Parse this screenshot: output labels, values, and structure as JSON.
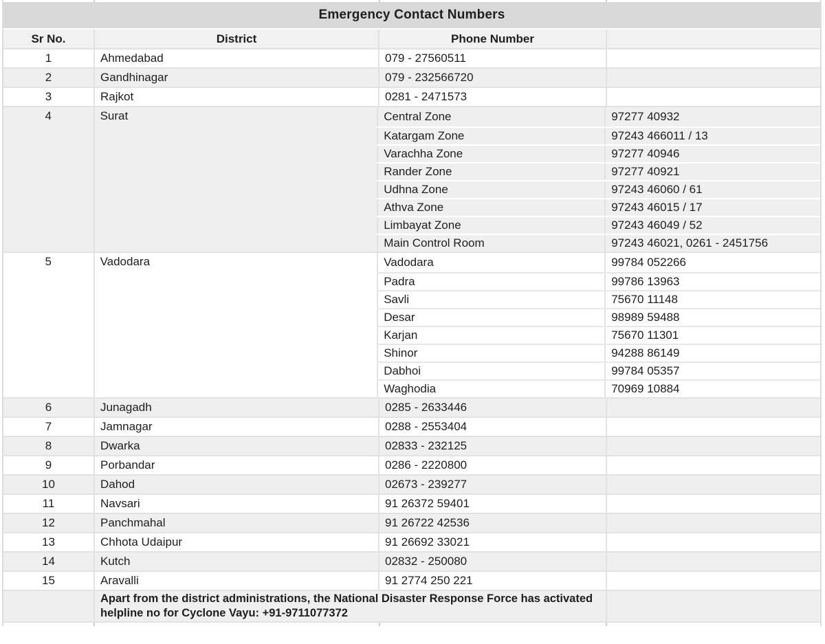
{
  "title": "Emergency Contact Numbers",
  "columns": {
    "sr": "Sr No.",
    "district": "District",
    "phone": "Phone Number",
    "extra": ""
  },
  "rows": [
    {
      "sr": "1",
      "district": "Ahmedabad",
      "phone": "079 - 27560511"
    },
    {
      "sr": "2",
      "district": "Gandhinagar",
      "phone": "079 - 232566720"
    },
    {
      "sr": "3",
      "district": "Rajkot",
      "phone": "0281 - 2471573"
    },
    {
      "sr": "4",
      "district": "Surat",
      "subrows": [
        {
          "name": "Central Zone",
          "phone": "97277 40932"
        },
        {
          "name": "Katargam Zone",
          "phone": "97243 466011 / 13"
        },
        {
          "name": "Varachha Zone",
          "phone": "97277 40946"
        },
        {
          "name": "Rander Zone",
          "phone": "97277 40921"
        },
        {
          "name": "Udhna Zone",
          "phone": "97243 46060 / 61"
        },
        {
          "name": "Athva Zone",
          "phone": "97243 46015 / 17"
        },
        {
          "name": "Limbayat Zone",
          "phone": "97243 46049 / 52"
        },
        {
          "name": "Main Control Room",
          "phone": "97243 46021, 0261 - 2451756"
        }
      ]
    },
    {
      "sr": "5",
      "district": "Vadodara",
      "subrows": [
        {
          "name": "Vadodara",
          "phone": "99784 052266"
        },
        {
          "name": "Padra",
          "phone": "99786 13963"
        },
        {
          "name": "Savli",
          "phone": "75670 11148"
        },
        {
          "name": "Desar",
          "phone": "98989 59488"
        },
        {
          "name": "Karjan",
          "phone": "75670 11301"
        },
        {
          "name": "Shinor",
          "phone": "94288 86149"
        },
        {
          "name": "Dabhoi",
          "phone": "99784 05357"
        },
        {
          "name": "Waghodia",
          "phone": "70969 10884"
        }
      ]
    },
    {
      "sr": "6",
      "district": "Junagadh",
      "phone": "0285 - 2633446"
    },
    {
      "sr": "7",
      "district": "Jamnagar",
      "phone": "0288 - 2553404"
    },
    {
      "sr": "8",
      "district": "Dwarka",
      "phone": "02833 - 232125"
    },
    {
      "sr": "9",
      "district": "Porbandar",
      "phone": "0286 - 2220800"
    },
    {
      "sr": "10",
      "district": "Dahod",
      "phone": "02673 - 239277"
    },
    {
      "sr": "11",
      "district": "Navsari",
      "phone": "91 26372 59401"
    },
    {
      "sr": "12",
      "district": "Panchmahal",
      "phone": "91 26722 42536"
    },
    {
      "sr": "13",
      "district": "Chhota Udaipur",
      "phone": "91 26692 33021"
    },
    {
      "sr": "14",
      "district": "Kutch",
      "phone": "02832 - 250080"
    },
    {
      "sr": "15",
      "district": "Aravalli",
      "phone": "91 2774 250 221"
    }
  ],
  "footer": {
    "note": "Apart from the district administrations, the National Disaster Response Force has activated helpline no for Cyclone Vayu: +91-9711077372"
  },
  "colors": {
    "title_bar": "#d9d9d9",
    "band_gray": "#efefef",
    "header_gray": "#f1f1f1",
    "grid_line": "#e2e2e2",
    "text": "#1e1e1e"
  }
}
